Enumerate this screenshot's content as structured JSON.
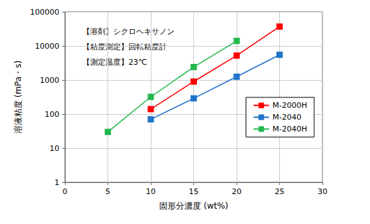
{
  "chart_data": {
    "type": "line",
    "x_label": "固形分濃度 (wt%)",
    "y_label": "溶液粘度 (mPa・s)",
    "annotations": [
      "【溶剤】シクロヘキサノン",
      "【粘度測定】回転粘度計",
      "【測定温度】23℃"
    ],
    "series": [
      {
        "name": "M-2000H",
        "color": "#ff0000",
        "marker": "square",
        "x": [
          10,
          15,
          20,
          25
        ],
        "values": [
          140,
          900,
          5200,
          37000
        ]
      },
      {
        "name": "M-2040",
        "color": "#1f74c9",
        "marker": "square",
        "x": [
          10,
          15,
          20,
          25
        ],
        "values": [
          70,
          290,
          1250,
          5500
        ]
      },
      {
        "name": "M-2040H",
        "color": "#22b84f",
        "marker": "square",
        "x": [
          5,
          10,
          15,
          20
        ],
        "values": [
          30,
          320,
          2400,
          14000
        ]
      }
    ],
    "xlim": [
      0,
      30
    ],
    "xticks": [
      0,
      5,
      10,
      15,
      20,
      25,
      30
    ],
    "ylim": [
      1,
      100000
    ],
    "yticks": [
      1,
      10,
      100,
      1000,
      10000,
      100000
    ],
    "log": "y",
    "grid": true,
    "legend": "right"
  }
}
